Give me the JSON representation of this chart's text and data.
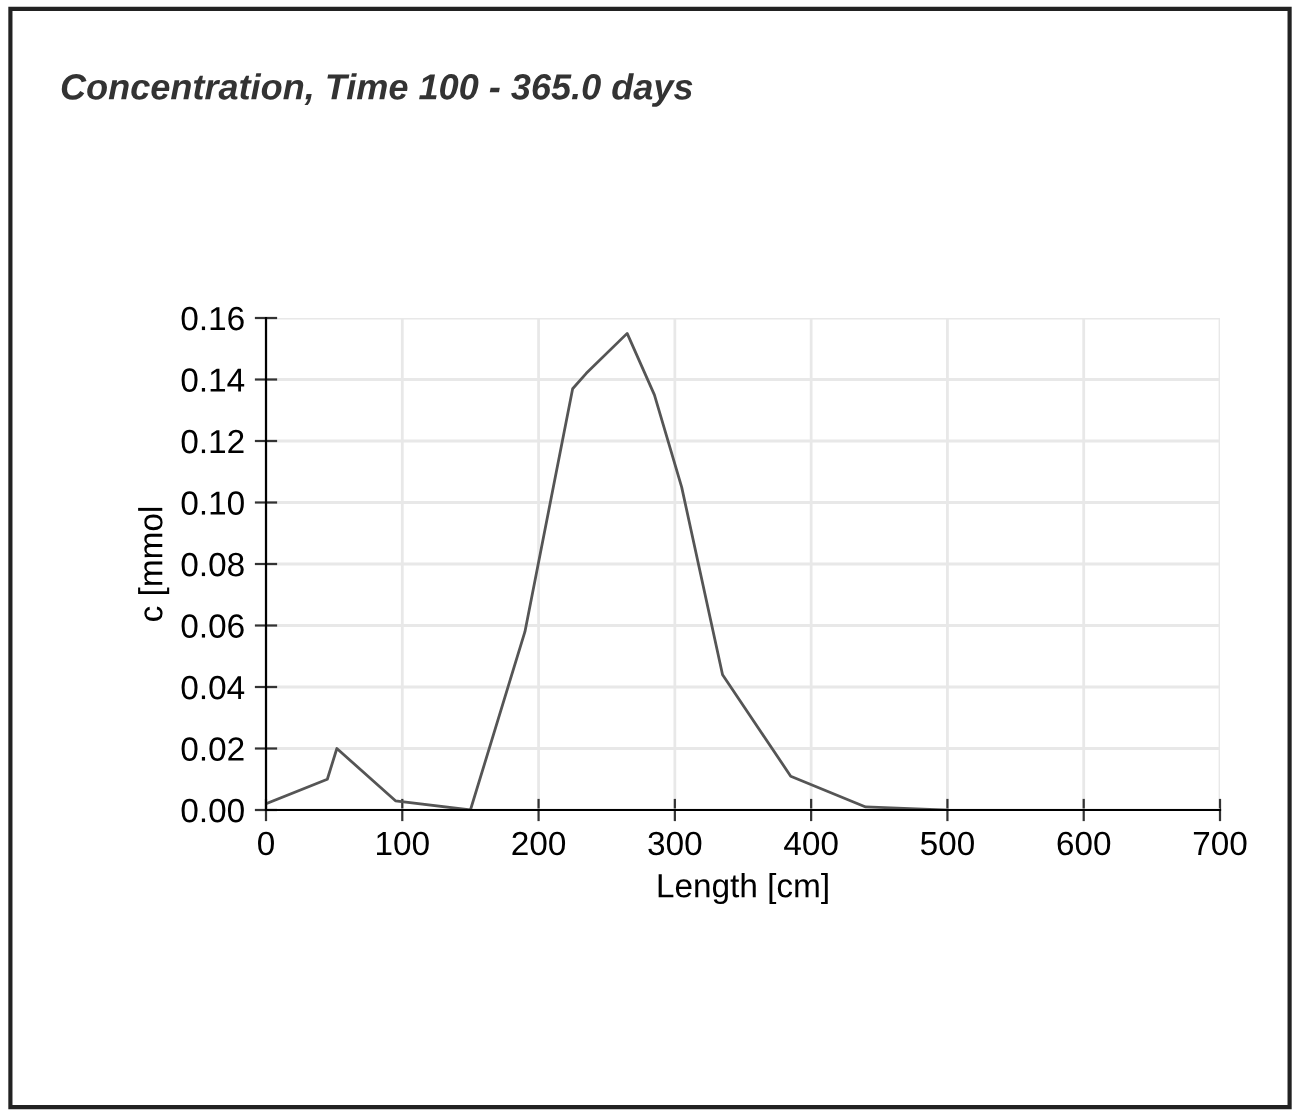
{
  "chart_data": {
    "type": "line",
    "title": "Concentration, Time 100 - 365.0 days",
    "xlabel": "Length [cm]",
    "ylabel": "c [mmol",
    "x": [
      0,
      45,
      52,
      95,
      150,
      190,
      225,
      235,
      265,
      285,
      305,
      335,
      385,
      440,
      500
    ],
    "series": [
      {
        "color": "#555555",
        "values": [
          0.002,
          0.01,
          0.02,
          0.003,
          0.0,
          0.058,
          0.137,
          0.142,
          0.155,
          0.135,
          0.105,
          0.044,
          0.011,
          0.001,
          0.0
        ]
      }
    ],
    "xlim": [
      0,
      700
    ],
    "xticks": [
      0,
      100,
      200,
      300,
      400,
      500,
      600,
      700
    ],
    "ylim": [
      0,
      0.16
    ],
    "yticks": [
      {
        "value": 0,
        "label": "0.00"
      },
      {
        "value": 0.02,
        "label": "0.02"
      },
      {
        "value": 0.04,
        "label": "0.04"
      },
      {
        "value": 0.06,
        "label": "0.06"
      },
      {
        "value": 0.08,
        "label": "0.08"
      },
      {
        "value": 0.1,
        "label": "0.10"
      },
      {
        "value": 0.12,
        "label": "0.12"
      },
      {
        "value": 0.14,
        "label": "0.14"
      },
      {
        "value": 0.16,
        "label": "0.16"
      }
    ],
    "grid": true,
    "marker": "none",
    "line_style": "solid"
  }
}
